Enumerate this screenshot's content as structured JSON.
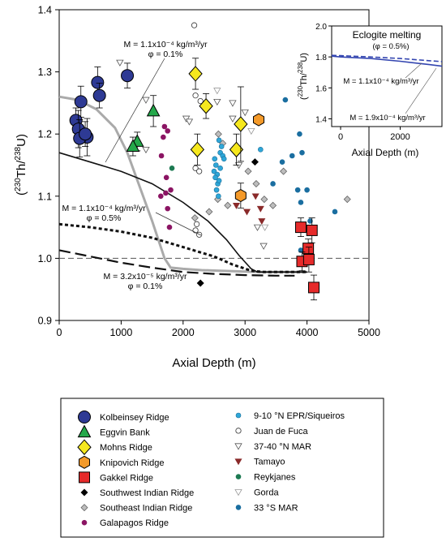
{
  "chart_data": [
    {
      "type": "scatter",
      "xlabel": "Axial Depth (m)",
      "ylabel_main": "230",
      "ylabel_sup2": "238",
      "ylabel_pre": "(",
      "ylabel_mid": "Th/",
      "ylabel_post": "U)",
      "xlim": [
        0,
        5000
      ],
      "ylim": [
        0.9,
        1.4
      ],
      "xticks": [
        0,
        1000,
        2000,
        3000,
        4000,
        5000
      ],
      "yticks": [
        0.9,
        1.0,
        1.1,
        1.2,
        1.3,
        1.4
      ],
      "xtick_labels": [
        "0",
        "1000",
        "2000",
        "3000",
        "4000",
        "5000"
      ],
      "ytick_labels": [
        "0.9",
        "1.0",
        "1.1",
        "1.2",
        "1.3",
        "1.4"
      ],
      "reference_line": 1.0,
      "annotations": [
        {
          "id": "m1",
          "lines": [
            "M = 1.1x10⁻⁴ kg/m³/yr",
            "φ = 0.1%"
          ]
        },
        {
          "id": "m2",
          "lines": [
            "M = 1.1x10⁻⁴ kg/m³/yr",
            "φ = 0.5%"
          ]
        },
        {
          "id": "m3",
          "lines": [
            "M = 3.2x10⁻⁵ kg/m³/yr",
            "φ = 0.1%"
          ]
        }
      ],
      "model_curves": [
        {
          "id": "gray-solid",
          "style": "solid",
          "color": "#aaaaaa",
          "x": [
            0,
            300,
            600,
            900,
            1100,
            1300,
            1500,
            1700,
            1800,
            2000,
            2300,
            2600,
            2900,
            3200,
            3500,
            4000
          ],
          "y": [
            1.26,
            1.255,
            1.24,
            1.21,
            1.17,
            1.115,
            1.06,
            1.0,
            0.985,
            0.983,
            0.981,
            0.98,
            0.979,
            0.978,
            0.978,
            0.978
          ]
        },
        {
          "id": "black-solid",
          "style": "solid",
          "color": "#111111",
          "x": [
            0,
            500,
            1000,
            1500,
            2000,
            2400,
            2700,
            2900,
            3100,
            3200,
            3400,
            4000
          ],
          "y": [
            1.17,
            1.155,
            1.14,
            1.12,
            1.09,
            1.06,
            1.03,
            1.005,
            0.983,
            0.978,
            0.978,
            0.978
          ]
        },
        {
          "id": "short-dash",
          "style": "short-dash",
          "color": "#111111",
          "x": [
            0,
            500,
            1000,
            1500,
            2000,
            2500,
            2800,
            3100,
            3300,
            3600,
            4000
          ],
          "y": [
            1.055,
            1.05,
            1.043,
            1.033,
            1.018,
            1.003,
            0.99,
            0.98,
            0.978,
            0.978,
            0.978
          ]
        },
        {
          "id": "long-dash",
          "style": "long-dash",
          "color": "#111111",
          "x": [
            0,
            500,
            1000,
            1500,
            2000,
            2500,
            3000,
            3500,
            3800
          ],
          "y": [
            1.013,
            1.003,
            0.993,
            0.985,
            0.978,
            0.975,
            0.973,
            0.972,
            0.972
          ]
        }
      ],
      "series": [
        {
          "name": "Kolbeinsey Ridge",
          "marker": "circle-large",
          "fill": "#2e3a94",
          "stroke": "#000000",
          "points": [
            [
              350,
              1.252
            ],
            [
              620,
              1.283
            ],
            [
              1100,
              1.294
            ],
            [
              650,
              1.262
            ],
            [
              270,
              1.222
            ],
            [
              310,
              1.208
            ],
            [
              450,
              1.195
            ],
            [
              330,
              1.193
            ],
            [
              420,
              1.2
            ]
          ],
          "error": [
            0.025,
            0.025,
            0.02,
            0.02,
            0.02,
            0.03,
            0.03,
            0.03,
            0.02
          ]
        },
        {
          "name": "Eggvin Bank",
          "marker": "triangle-large",
          "fill": "#24a84a",
          "stroke": "#000000",
          "points": [
            [
              1520,
              1.237
            ],
            [
              1260,
              1.188
            ],
            [
              1190,
              1.18
            ]
          ],
          "error": [
            0.025,
            0.015,
            0.015
          ]
        },
        {
          "name": "Mohns Ridge",
          "marker": "diamond-large",
          "fill": "#f6e81e",
          "stroke": "#000000",
          "points": [
            [
              2200,
              1.297
            ],
            [
              2370,
              1.245
            ],
            [
              2230,
              1.175
            ],
            [
              2860,
              1.175
            ],
            [
              2930,
              1.216
            ]
          ],
          "error": [
            0.025,
            0.02,
            0.025,
            0.025,
            0.06
          ]
        },
        {
          "name": "Knipovich Ridge",
          "marker": "hexagon-large",
          "fill": "#f49a2a",
          "stroke": "#000000",
          "points": [
            [
              3220,
              1.223
            ],
            [
              2930,
              1.101
            ]
          ],
          "error": [
            0.0,
            0.02
          ]
        },
        {
          "name": "Gakkel Ridge",
          "marker": "square-large",
          "fill": "#e62b2b",
          "stroke": "#000000",
          "points": [
            [
              3900,
              1.05
            ],
            [
              4080,
              1.045
            ],
            [
              4020,
              1.016
            ],
            [
              3920,
              0.995
            ],
            [
              4030,
              0.998
            ],
            [
              4110,
              0.953
            ]
          ],
          "error": [
            0.015,
            0.02,
            0.015,
            0.015,
            0.02,
            0.02
          ]
        },
        {
          "name": "Southwest Indian Ridge",
          "marker": "diamond-small",
          "fill": "#000000",
          "stroke": "#000000",
          "points": [
            [
              2280,
              0.96
            ],
            [
              3160,
              1.155
            ]
          ]
        },
        {
          "name": "Southeast Indian Ridge",
          "marker": "diamond-small",
          "fill": "#bdbdbd",
          "stroke": "#555555",
          "points": [
            [
              2190,
              1.065
            ],
            [
              2420,
              1.075
            ],
            [
              2560,
              1.095
            ],
            [
              2720,
              1.085
            ],
            [
              3050,
              1.14
            ],
            [
              3180,
              1.12
            ],
            [
              3310,
              1.095
            ],
            [
              3450,
              1.085
            ],
            [
              3620,
              1.14
            ],
            [
              4650,
              1.095
            ],
            [
              2570,
              1.2
            ],
            [
              2640,
              1.185
            ]
          ]
        },
        {
          "name": "Galapagos Ridge",
          "marker": "circle-small",
          "fill": "#8b1463",
          "stroke": "#8b1463",
          "points": [
            [
              1700,
              1.212
            ],
            [
              1750,
              1.205
            ],
            [
              1680,
              1.195
            ],
            [
              1650,
              1.165
            ],
            [
              1730,
              1.13
            ],
            [
              1640,
              1.1
            ],
            [
              1720,
              1.105
            ],
            [
              1800,
              1.11
            ],
            [
              1750,
              1.08
            ],
            [
              1780,
              1.05
            ]
          ]
        },
        {
          "name": "9-10 °N EPR/Siqueiros",
          "marker": "circle-small",
          "fill": "#2fa7d8",
          "stroke": "#1b6f9a",
          "points": [
            [
              2510,
              1.16
            ],
            [
              2530,
              1.15
            ],
            [
              2500,
              1.14
            ],
            [
              2550,
              1.135
            ],
            [
              2520,
              1.13
            ],
            [
              2560,
              1.12
            ],
            [
              2540,
              1.11
            ],
            [
              2570,
              1.1
            ],
            [
              2600,
              1.17
            ],
            [
              2620,
              1.18
            ],
            [
              2580,
              1.19
            ],
            [
              2640,
              1.165
            ],
            [
              2600,
              1.145
            ],
            [
              2660,
              1.16
            ],
            [
              2580,
              1.125
            ],
            [
              3250,
              1.175
            ]
          ]
        },
        {
          "name": "Juan de Fuca",
          "marker": "circle-open",
          "fill": "#ffffff",
          "stroke": "#333333",
          "points": [
            [
              2180,
              1.375
            ],
            [
              2200,
              1.262
            ],
            [
              2280,
              1.253
            ],
            [
              2200,
              1.145
            ],
            [
              2260,
              1.14
            ],
            [
              2220,
              1.055
            ],
            [
              2200,
              1.045
            ],
            [
              2260,
              1.038
            ]
          ]
        },
        {
          "name": "37-40 °N MAR",
          "marker": "triangle-open-down",
          "fill": "#ffffff",
          "stroke": "#555555",
          "points": [
            [
              980,
              1.315
            ],
            [
              1400,
              1.255
            ],
            [
              1400,
              1.175
            ],
            [
              2050,
              1.225
            ],
            [
              2100,
              1.22
            ],
            [
              2550,
              1.252
            ],
            [
              2800,
              1.25
            ],
            [
              3000,
              1.235
            ],
            [
              2800,
              1.225
            ],
            [
              2900,
              1.15
            ],
            [
              3200,
              1.05
            ],
            [
              3300,
              1.02
            ]
          ]
        },
        {
          "name": "Tamayo",
          "marker": "triangle-filled-down",
          "fill": "#8a2a2a",
          "stroke": "#8a2a2a",
          "points": [
            [
              2860,
              1.085
            ],
            [
              3030,
              1.075
            ],
            [
              3170,
              1.1
            ],
            [
              3270,
              1.06
            ],
            [
              3250,
              1.08
            ]
          ]
        },
        {
          "name": "Reykjanes",
          "marker": "circle-small",
          "fill": "#1d7a52",
          "stroke": "#1d7a52",
          "points": [
            [
              1820,
              1.145
            ]
          ]
        },
        {
          "name": "Gorda",
          "marker": "triangle-open-down",
          "fill": "#ffffff",
          "stroke": "#999999",
          "points": [
            [
              2550,
              1.27
            ],
            [
              3100,
              1.205
            ],
            [
              3320,
              1.05
            ]
          ]
        },
        {
          "name": "33 °S MAR",
          "marker": "circle-small",
          "fill": "#1a6ea0",
          "stroke": "#1a6ea0",
          "points": [
            [
              3650,
              1.255
            ],
            [
              3880,
              1.2
            ],
            [
              3760,
              1.165
            ],
            [
              3920,
              1.17
            ],
            [
              3600,
              1.155
            ],
            [
              3450,
              1.12
            ],
            [
              3850,
              1.11
            ],
            [
              4000,
              1.11
            ],
            [
              3900,
              1.09
            ],
            [
              4050,
              1.06
            ],
            [
              4450,
              1.075
            ],
            [
              3900,
              1.013
            ]
          ]
        }
      ]
    },
    {
      "type": "line",
      "title": "Eclogite melting",
      "subtitle": "(φ = 0.5%)",
      "xlabel": "Axial Depth (m)",
      "ylabel_main": "230",
      "ylabel_sup2": "238",
      "ylabel_pre": "(",
      "ylabel_mid": "Th/",
      "ylabel_post": "U)",
      "xlim": [
        -300,
        3400
      ],
      "ylim": [
        1.35,
        2.0
      ],
      "xticks": [
        0,
        2000
      ],
      "yticks": [
        1.4,
        1.6,
        1.8,
        2.0
      ],
      "xtick_labels": [
        "0",
        "2000"
      ],
      "ytick_labels": [
        "1.4",
        "1.6",
        "1.8",
        "2.0"
      ],
      "annotations": [
        {
          "id": "i1",
          "lines": [
            "M = 1.1x10⁻⁴ kg/m³/yr"
          ]
        },
        {
          "id": "i2",
          "lines": [
            "M = 1.9x10⁻⁴ kg/m³/yr"
          ]
        }
      ],
      "series": [
        {
          "id": "solid",
          "style": "solid",
          "color": "#3345b0",
          "x": [
            -300,
            0,
            1000,
            2000,
            3000,
            3400
          ],
          "y": [
            1.805,
            1.8,
            1.79,
            1.772,
            1.75,
            1.74
          ]
        },
        {
          "id": "dashed",
          "style": "dash",
          "color": "#3345b0",
          "x": [
            -300,
            0,
            1000,
            2000,
            3000,
            3400
          ],
          "y": [
            1.81,
            1.808,
            1.8,
            1.79,
            1.775,
            1.77
          ]
        }
      ]
    }
  ],
  "legend": {
    "left": [
      {
        "label": "Kolbeinsey Ridge",
        "marker": "circle-large",
        "fill": "#2e3a94",
        "stroke": "#000000"
      },
      {
        "label": "Eggvin Bank",
        "marker": "triangle-large",
        "fill": "#24a84a",
        "stroke": "#000000"
      },
      {
        "label": "Mohns Ridge",
        "marker": "diamond-large",
        "fill": "#f6e81e",
        "stroke": "#000000"
      },
      {
        "label": "Knipovich Ridge",
        "marker": "hexagon-large",
        "fill": "#f49a2a",
        "stroke": "#000000"
      },
      {
        "label": "Gakkel Ridge",
        "marker": "square-large",
        "fill": "#e62b2b",
        "stroke": "#000000"
      },
      {
        "label": "Southwest Indian Ridge",
        "marker": "diamond-small",
        "fill": "#000000",
        "stroke": "#000000"
      },
      {
        "label": "Southeast Indian Ridge",
        "marker": "diamond-small",
        "fill": "#bdbdbd",
        "stroke": "#555555"
      },
      {
        "label": "Galapagos Ridge",
        "marker": "circle-small",
        "fill": "#8b1463",
        "stroke": "#8b1463"
      }
    ],
    "right": [
      {
        "label": "9-10 °N EPR/Siqueiros",
        "marker": "circle-small",
        "fill": "#2fa7d8",
        "stroke": "#1b6f9a"
      },
      {
        "label": "Juan de Fuca",
        "marker": "circle-open",
        "fill": "#ffffff",
        "stroke": "#333333"
      },
      {
        "label": "37-40 °N MAR",
        "marker": "triangle-open-down",
        "fill": "#ffffff",
        "stroke": "#555555"
      },
      {
        "label": "Tamayo",
        "marker": "triangle-filled-down",
        "fill": "#8a2a2a",
        "stroke": "#8a2a2a"
      },
      {
        "label": "Reykjanes",
        "marker": "circle-small",
        "fill": "#1d7a52",
        "stroke": "#1d7a52"
      },
      {
        "label": "Gorda",
        "marker": "triangle-open-down",
        "fill": "#ffffff",
        "stroke": "#999999"
      },
      {
        "label": "33 °S MAR",
        "marker": "circle-small",
        "fill": "#1a6ea0",
        "stroke": "#1a6ea0"
      }
    ]
  }
}
